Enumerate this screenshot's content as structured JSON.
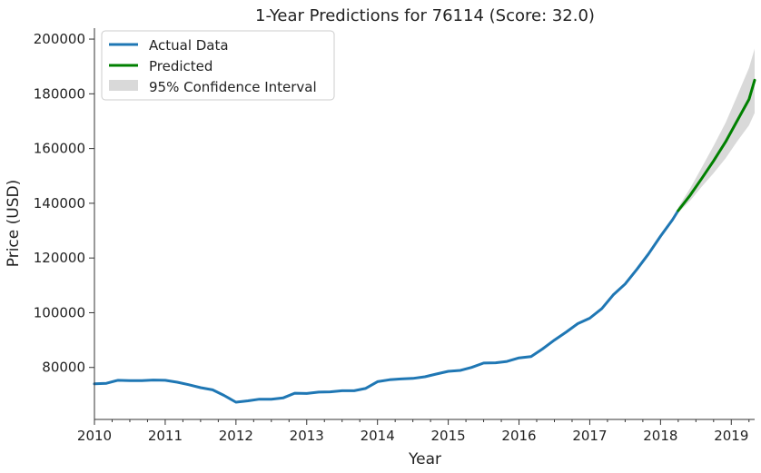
{
  "chart_data": {
    "type": "line",
    "title": "1-Year Predictions for 76114 (Score: 32.0)",
    "xlabel": "Year",
    "ylabel": "Price (USD)",
    "xlim": [
      2010.0,
      2019.33
    ],
    "ylim": [
      61000,
      204000
    ],
    "x_ticks": [
      "2010",
      "2011",
      "2012",
      "2013",
      "2014",
      "2015",
      "2016",
      "2017",
      "2018",
      "2019"
    ],
    "y_ticks": [
      "80000",
      "100000",
      "120000",
      "140000",
      "160000",
      "180000",
      "200000"
    ],
    "legend_position": "top-left",
    "colors": {
      "actual": "#1f77b4",
      "predicted": "#008000",
      "ci_fill": "#d9d9d9"
    },
    "series": [
      {
        "name": "Actual Data",
        "x": [
          2010.0,
          2010.17,
          2010.33,
          2010.5,
          2010.67,
          2010.83,
          2011.0,
          2011.17,
          2011.33,
          2011.5,
          2011.67,
          2011.83,
          2012.0,
          2012.17,
          2012.33,
          2012.5,
          2012.67,
          2012.83,
          2013.0,
          2013.17,
          2013.33,
          2013.5,
          2013.67,
          2013.83,
          2014.0,
          2014.17,
          2014.33,
          2014.5,
          2014.67,
          2014.83,
          2015.0,
          2015.17,
          2015.33,
          2015.5,
          2015.67,
          2015.83,
          2016.0,
          2016.17,
          2016.33,
          2016.5,
          2016.67,
          2016.83,
          2017.0,
          2017.17,
          2017.33,
          2017.5,
          2017.67,
          2017.83,
          2018.0,
          2018.17,
          2018.25
        ],
        "values": [
          74000,
          74200,
          75300,
          75200,
          75200,
          75400,
          75300,
          74600,
          73700,
          72600,
          71800,
          69800,
          67300,
          67800,
          68400,
          68400,
          68900,
          70600,
          70500,
          71000,
          71100,
          71500,
          71500,
          72300,
          74800,
          75500,
          75800,
          76000,
          76600,
          77600,
          78600,
          78900,
          80000,
          81600,
          81700,
          82200,
          83500,
          84000,
          86700,
          90000,
          93000,
          96000,
          98000,
          101500,
          106500,
          110500,
          116000,
          121500,
          128000,
          134000,
          137300
        ]
      },
      {
        "name": "Predicted",
        "x": [
          2018.25,
          2018.42,
          2018.58,
          2018.75,
          2018.92,
          2019.08,
          2019.25,
          2019.33
        ],
        "values": [
          137300,
          143000,
          149000,
          155500,
          162500,
          170000,
          178000,
          185000
        ]
      },
      {
        "name": "95% Confidence Interval",
        "x": [
          2018.25,
          2018.42,
          2018.58,
          2018.75,
          2018.92,
          2019.08,
          2019.25,
          2019.33
        ],
        "lower": [
          136500,
          141000,
          146000,
          151000,
          156500,
          162500,
          168500,
          173000
        ],
        "upper": [
          138500,
          145500,
          153000,
          161000,
          169500,
          179000,
          189500,
          196500
        ]
      }
    ]
  }
}
